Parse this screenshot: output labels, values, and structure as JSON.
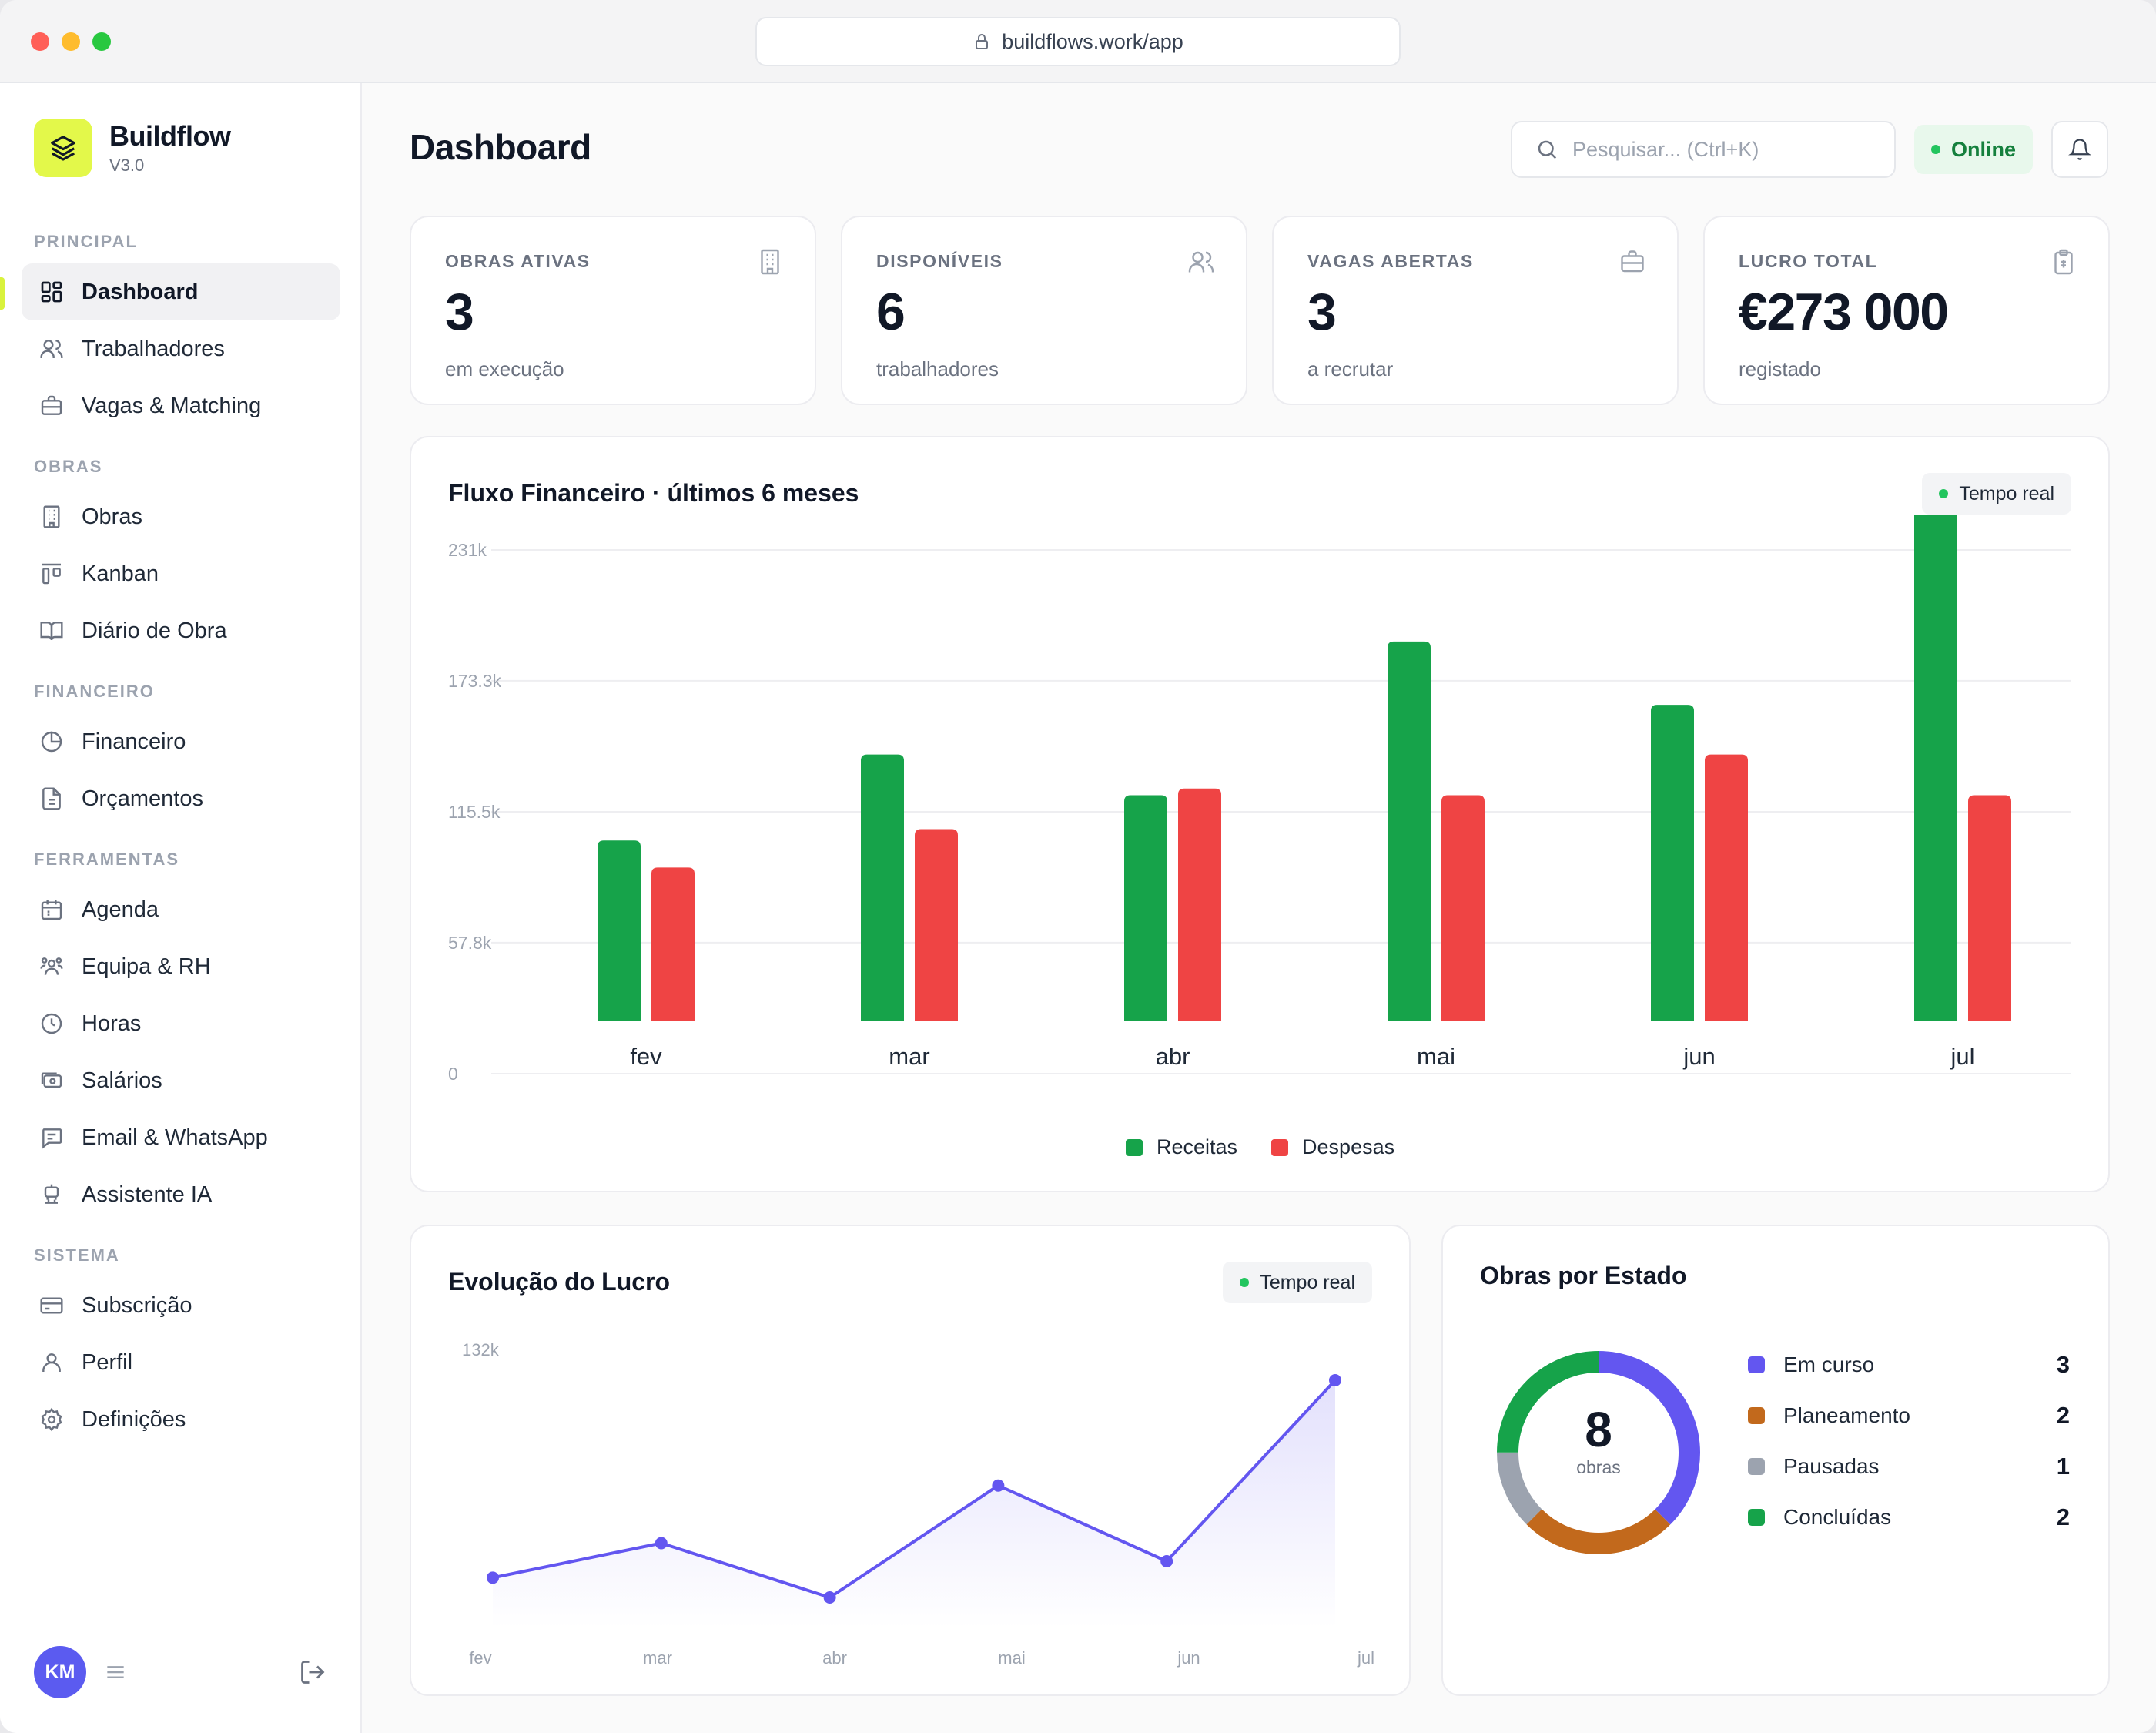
{
  "browser": {
    "url": "buildflows.work/app"
  },
  "sidebar": {
    "brand": "Buildflow",
    "version": "V3.0",
    "sections": [
      {
        "title": "PRINCIPAL",
        "items": [
          {
            "label": "Dashboard",
            "icon": "dashboard-icon",
            "active": true
          },
          {
            "label": "Trabalhadores",
            "icon": "users-icon"
          },
          {
            "label": "Vagas & Matching",
            "icon": "briefcase-icon"
          }
        ]
      },
      {
        "title": "OBRAS",
        "items": [
          {
            "label": "Obras",
            "icon": "building-icon"
          },
          {
            "label": "Kanban",
            "icon": "kanban-icon"
          },
          {
            "label": "Diário de Obra",
            "icon": "book-icon"
          }
        ]
      },
      {
        "title": "FINANCEIRO",
        "items": [
          {
            "label": "Financeiro",
            "icon": "pie-chart-icon"
          },
          {
            "label": "Orçamentos",
            "icon": "file-icon"
          }
        ]
      },
      {
        "title": "FERRAMENTAS",
        "items": [
          {
            "label": "Agenda",
            "icon": "calendar-icon"
          },
          {
            "label": "Equipa & RH",
            "icon": "team-icon"
          },
          {
            "label": "Horas",
            "icon": "clock-icon"
          },
          {
            "label": "Salários",
            "icon": "money-icon"
          },
          {
            "label": "Email & WhatsApp",
            "icon": "message-icon"
          },
          {
            "label": "Assistente IA",
            "icon": "bot-icon"
          }
        ]
      },
      {
        "title": "SISTEMA",
        "items": [
          {
            "label": "Subscrição",
            "icon": "credit-card-icon"
          },
          {
            "label": "Perfil",
            "icon": "user-icon"
          },
          {
            "label": "Definições",
            "icon": "settings-icon"
          }
        ]
      }
    ],
    "user_initials": "KM"
  },
  "header": {
    "title": "Dashboard",
    "search_placeholder": "Pesquisar... (Ctrl+K)",
    "status": "Online"
  },
  "kpis": [
    {
      "label": "OBRAS ATIVAS",
      "value": "3",
      "sub": "em execução",
      "icon": "building-icon"
    },
    {
      "label": "DISPONÍVEIS",
      "value": "6",
      "sub": "trabalhadores",
      "icon": "users-icon"
    },
    {
      "label": "VAGAS ABERTAS",
      "value": "3",
      "sub": "a recrutar",
      "icon": "briefcase-icon"
    },
    {
      "label": "LUCRO TOTAL",
      "value": "€273 000",
      "sub": "registado",
      "icon": "clipboard-icon"
    }
  ],
  "cashflow": {
    "title": "Fluxo Financeiro · últimos 6 meses",
    "badge": "Tempo real"
  },
  "profit": {
    "title": "Evolução do Lucro",
    "badge": "Tempo real"
  },
  "obras_estado": {
    "title": "Obras por Estado",
    "total": "8",
    "total_label": "obras"
  },
  "chart_data": [
    {
      "type": "bar",
      "title": "Fluxo Financeiro · últimos 6 meses",
      "categories": [
        "fev",
        "mar",
        "abr",
        "mai",
        "jun",
        "jul"
      ],
      "series": [
        {
          "name": "Receitas",
          "color": "#16a34a",
          "values": [
            80000,
            118000,
            100000,
            168000,
            140000,
            231000
          ]
        },
        {
          "name": "Despesas",
          "color": "#ef4444",
          "values": [
            68000,
            85000,
            103000,
            100000,
            118000,
            100000
          ]
        }
      ],
      "yticks": [
        "0",
        "57.8k",
        "115.5k",
        "173.3k",
        "231k"
      ],
      "ytick_values": [
        0,
        57800,
        115500,
        173300,
        231000
      ],
      "ylim": [
        0,
        231000
      ],
      "grid": true,
      "legend": "bottom-center"
    },
    {
      "type": "area",
      "title": "Evolução do Lucro",
      "categories": [
        "fev",
        "mar",
        "abr",
        "mai",
        "jun",
        "jul"
      ],
      "series": [
        {
          "color": "#6356f0",
          "values": [
            12000,
            33000,
            0,
            68000,
            22000,
            132000
          ]
        }
      ],
      "ytick_label": "132k",
      "ylim": [
        0,
        132000
      ],
      "grid": false
    },
    {
      "type": "pie",
      "title": "Obras por Estado",
      "labels": [
        "Em curso",
        "Planeamento",
        "Pausadas",
        "Concluídas"
      ],
      "values": [
        3,
        2,
        1,
        2
      ],
      "colors": [
        "#6356f0",
        "#c2691c",
        "#9ca3af",
        "#16a34a"
      ],
      "legend": "right"
    }
  ]
}
